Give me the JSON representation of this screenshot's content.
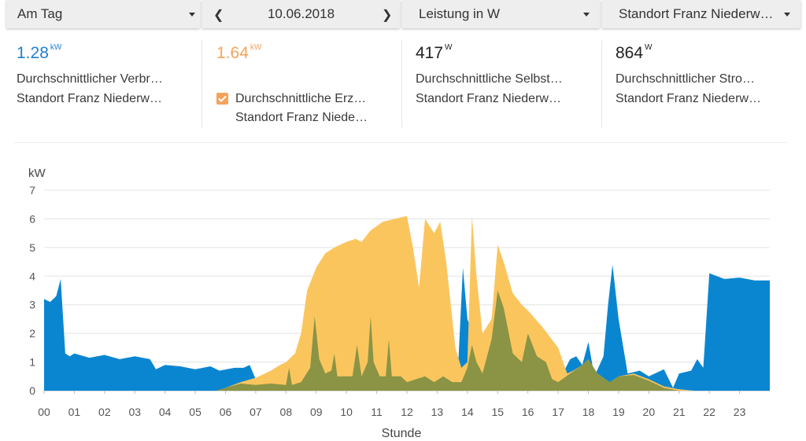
{
  "toolbar": {
    "period": "Am Tag",
    "date": "10.06.2018",
    "metric": "Leistung in W",
    "location": "Standort Franz Niederw…"
  },
  "kpis": [
    {
      "value": "1.28",
      "unit": "kW",
      "color": "#1f7fcf",
      "line1": "Durchschnittlicher Verbr…",
      "line2": "Standort Franz Niederw…"
    },
    {
      "value": "1.64",
      "unit": "kW",
      "color": "#f5a35a",
      "line1": "Durchschnittliche Erz…",
      "line2": "Standort Franz Niede…",
      "checked": true
    },
    {
      "value": "417",
      "unit": "W",
      "color": "#222222",
      "line1": "Durchschnittliche Selbst…",
      "line2": "Standort Franz Niederw…"
    },
    {
      "value": "864",
      "unit": "W",
      "color": "#222222",
      "line1": "Durchschnittlicher Stro…",
      "line2": "Standort Franz Niederw…"
    }
  ],
  "chart_data": {
    "type": "area",
    "ylabel": "kW",
    "xlabel": "Stunde",
    "ylim": [
      0,
      7
    ],
    "xlim": [
      0,
      24
    ],
    "yticks": [
      "0",
      "1",
      "2",
      "3",
      "4",
      "5",
      "6",
      "7"
    ],
    "xticks": [
      "00",
      "01",
      "02",
      "03",
      "04",
      "05",
      "06",
      "07",
      "08",
      "09",
      "10",
      "11",
      "12",
      "13",
      "14",
      "15",
      "16",
      "17",
      "18",
      "19",
      "20",
      "21",
      "22",
      "23"
    ],
    "grid": true,
    "series": [
      {
        "role": "consumption",
        "color": "#0a86d1",
        "points": [
          [
            0,
            3.2
          ],
          [
            0.2,
            3.1
          ],
          [
            0.4,
            3.3
          ],
          [
            0.55,
            3.9
          ],
          [
            0.7,
            1.3
          ],
          [
            0.85,
            1.2
          ],
          [
            1.0,
            1.3
          ],
          [
            1.5,
            1.15
          ],
          [
            2.0,
            1.25
          ],
          [
            2.5,
            1.1
          ],
          [
            3.0,
            1.2
          ],
          [
            3.5,
            1.1
          ],
          [
            3.7,
            0.75
          ],
          [
            4.0,
            0.9
          ],
          [
            4.5,
            0.85
          ],
          [
            5.0,
            0.75
          ],
          [
            5.5,
            0.85
          ],
          [
            5.8,
            0.7
          ],
          [
            6.3,
            0.8
          ],
          [
            6.6,
            0.8
          ],
          [
            6.8,
            0.9
          ],
          [
            7.0,
            0.4
          ],
          [
            7.5,
            0.2
          ],
          [
            8.0,
            0.2
          ],
          [
            9.0,
            0.15
          ],
          [
            10.0,
            0.15
          ],
          [
            11.0,
            0.15
          ],
          [
            12.0,
            0.15
          ],
          [
            13.0,
            0.2
          ],
          [
            13.5,
            0.3
          ],
          [
            13.7,
            1.0
          ],
          [
            13.85,
            4.3
          ],
          [
            14.0,
            2.5
          ],
          [
            14.3,
            1.6
          ],
          [
            14.6,
            1.2
          ],
          [
            14.8,
            2.5
          ],
          [
            15.0,
            4.2
          ],
          [
            15.2,
            2.0
          ],
          [
            15.5,
            1.0
          ],
          [
            16.0,
            0.3
          ],
          [
            16.5,
            0.2
          ],
          [
            17.0,
            0.3
          ],
          [
            17.4,
            1.1
          ],
          [
            17.6,
            1.2
          ],
          [
            17.8,
            0.9
          ],
          [
            18.0,
            1.7
          ],
          [
            18.2,
            0.5
          ],
          [
            18.5,
            1.2
          ],
          [
            18.65,
            3.0
          ],
          [
            18.8,
            4.4
          ],
          [
            19.0,
            2.5
          ],
          [
            19.3,
            0.6
          ],
          [
            19.7,
            0.7
          ],
          [
            20.0,
            0.5
          ],
          [
            20.5,
            0.75
          ],
          [
            20.8,
            0.1
          ],
          [
            21.0,
            0.6
          ],
          [
            21.4,
            0.7
          ],
          [
            21.6,
            1.1
          ],
          [
            21.8,
            0.8
          ],
          [
            22.0,
            4.1
          ],
          [
            22.5,
            3.9
          ],
          [
            23.0,
            3.95
          ],
          [
            23.5,
            3.85
          ],
          [
            24.0,
            3.85
          ]
        ]
      },
      {
        "role": "production",
        "color": "#fbc55e",
        "points": [
          [
            0,
            0
          ],
          [
            5.7,
            0
          ],
          [
            6.0,
            0.1
          ],
          [
            6.5,
            0.3
          ],
          [
            7.0,
            0.45
          ],
          [
            7.5,
            0.7
          ],
          [
            7.8,
            0.9
          ],
          [
            8.0,
            1.0
          ],
          [
            8.3,
            1.3
          ],
          [
            8.5,
            2.0
          ],
          [
            8.7,
            3.5
          ],
          [
            9.0,
            4.3
          ],
          [
            9.3,
            4.8
          ],
          [
            9.6,
            5.0
          ],
          [
            10.0,
            5.2
          ],
          [
            10.3,
            5.3
          ],
          [
            10.5,
            5.2
          ],
          [
            10.8,
            5.6
          ],
          [
            11.2,
            5.9
          ],
          [
            11.6,
            6.0
          ],
          [
            12.0,
            6.1
          ],
          [
            12.2,
            5.0
          ],
          [
            12.4,
            3.6
          ],
          [
            12.6,
            6.0
          ],
          [
            12.9,
            5.5
          ],
          [
            13.1,
            5.9
          ],
          [
            13.3,
            4.5
          ],
          [
            13.6,
            1.5
          ],
          [
            13.8,
            0.8
          ],
          [
            14.0,
            1.0
          ],
          [
            14.15,
            6.1
          ],
          [
            14.3,
            4.0
          ],
          [
            14.5,
            2.0
          ],
          [
            14.8,
            2.5
          ],
          [
            15.0,
            5.1
          ],
          [
            15.2,
            4.5
          ],
          [
            15.5,
            3.4
          ],
          [
            15.8,
            3.0
          ],
          [
            16.0,
            2.8
          ],
          [
            16.5,
            2.2
          ],
          [
            17.0,
            1.5
          ],
          [
            17.3,
            0.6
          ],
          [
            17.5,
            0.7
          ],
          [
            17.8,
            0.9
          ],
          [
            18.0,
            1.1
          ],
          [
            18.3,
            0.6
          ],
          [
            18.7,
            0.3
          ],
          [
            19.0,
            0.5
          ],
          [
            19.5,
            0.6
          ],
          [
            20.0,
            0.4
          ],
          [
            20.5,
            0.15
          ],
          [
            21.0,
            0.05
          ],
          [
            21.5,
            0
          ],
          [
            24.0,
            0
          ]
        ]
      },
      {
        "role": "self-consumption",
        "color": "#8a9444",
        "points": [
          [
            0,
            0
          ],
          [
            5.7,
            0
          ],
          [
            6.0,
            0.1
          ],
          [
            6.5,
            0.25
          ],
          [
            7.0,
            0.2
          ],
          [
            7.5,
            0.25
          ],
          [
            8.0,
            0.2
          ],
          [
            8.1,
            0.8
          ],
          [
            8.2,
            0.2
          ],
          [
            8.5,
            0.3
          ],
          [
            8.8,
            0.8
          ],
          [
            8.95,
            2.6
          ],
          [
            9.1,
            1.1
          ],
          [
            9.3,
            0.6
          ],
          [
            9.5,
            0.7
          ],
          [
            9.6,
            1.3
          ],
          [
            9.7,
            0.5
          ],
          [
            10.0,
            0.5
          ],
          [
            10.2,
            0.5
          ],
          [
            10.35,
            1.6
          ],
          [
            10.5,
            0.5
          ],
          [
            10.7,
            1.0
          ],
          [
            10.8,
            2.6
          ],
          [
            10.9,
            1.0
          ],
          [
            11.1,
            0.5
          ],
          [
            11.3,
            0.5
          ],
          [
            11.4,
            1.8
          ],
          [
            11.5,
            0.5
          ],
          [
            11.8,
            0.5
          ],
          [
            12.0,
            0.3
          ],
          [
            12.3,
            0.4
          ],
          [
            12.6,
            0.5
          ],
          [
            12.9,
            0.3
          ],
          [
            13.2,
            0.5
          ],
          [
            13.5,
            0.3
          ],
          [
            13.8,
            0.3
          ],
          [
            14.0,
            0.8
          ],
          [
            14.15,
            1.6
          ],
          [
            14.3,
            1.0
          ],
          [
            14.5,
            0.6
          ],
          [
            14.8,
            1.8
          ],
          [
            15.0,
            3.5
          ],
          [
            15.2,
            2.9
          ],
          [
            15.5,
            1.3
          ],
          [
            15.8,
            1.0
          ],
          [
            16.0,
            2.0
          ],
          [
            16.3,
            1.2
          ],
          [
            16.6,
            1.0
          ],
          [
            16.8,
            0.4
          ],
          [
            17.0,
            0.3
          ],
          [
            17.4,
            0.6
          ],
          [
            17.8,
            0.9
          ],
          [
            18.0,
            1.1
          ],
          [
            18.3,
            0.6
          ],
          [
            18.7,
            0.3
          ],
          [
            19.0,
            0.5
          ],
          [
            19.5,
            0.55
          ],
          [
            20.0,
            0.35
          ],
          [
            20.5,
            0.1
          ],
          [
            21.0,
            0
          ],
          [
            24.0,
            0
          ]
        ]
      }
    ]
  }
}
